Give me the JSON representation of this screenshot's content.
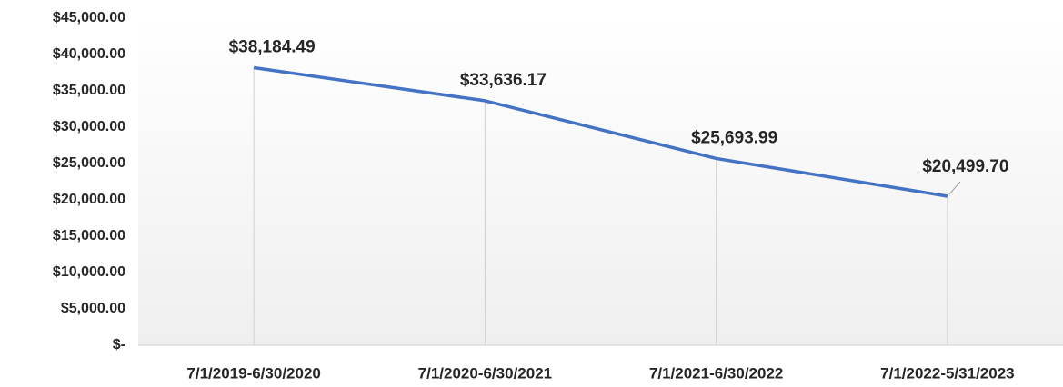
{
  "chart_data": {
    "type": "line",
    "categories": [
      "7/1/2019-6/30/2020",
      "7/1/2020-6/30/2021",
      "7/1/2021-6/30/2022",
      "7/1/2022-5/31/2023"
    ],
    "values": [
      38184.49,
      33636.17,
      25693.99,
      20499.7
    ],
    "value_labels": [
      "$38,184.49",
      "$33,636.17",
      "$25,693.99",
      "$20,499.70"
    ],
    "color": "#4472c4",
    "ylim": [
      0,
      45000
    ],
    "yticks": [
      {
        "value": 0,
        "label": "$-"
      },
      {
        "value": 5000,
        "label": "$5,000.00"
      },
      {
        "value": 10000,
        "label": "$10,000.00"
      },
      {
        "value": 15000,
        "label": "$15,000.00"
      },
      {
        "value": 20000,
        "label": "$20,000.00"
      },
      {
        "value": 25000,
        "label": "$25,000.00"
      },
      {
        "value": 30000,
        "label": "$30,000.00"
      },
      {
        "value": 35000,
        "label": "$35,000.00"
      },
      {
        "value": 40000,
        "label": "$40,000.00"
      },
      {
        "value": 45000,
        "label": "$45,000.00"
      }
    ],
    "drop_lines": true
  }
}
